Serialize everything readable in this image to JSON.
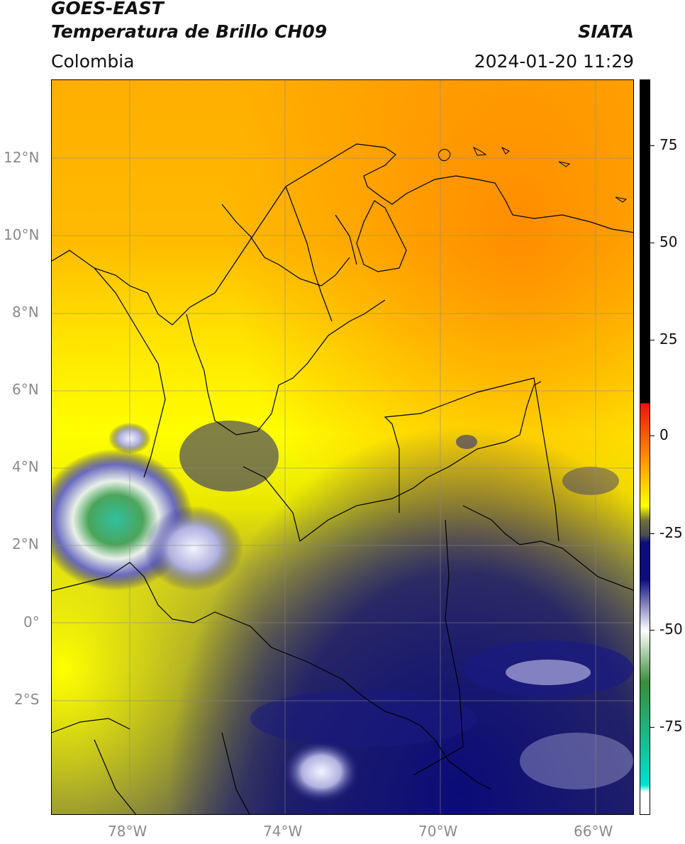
{
  "header": {
    "satellite": "GOES-EAST",
    "product": "Temperatura de Brillo CH09",
    "region": "Colombia",
    "org": "SIATA",
    "timestamp": "2024-01-20 11:29"
  },
  "map": {
    "lat_labels": [
      "12°N",
      "10°N",
      "8°N",
      "6°N",
      "4°N",
      "2°N",
      "0°",
      "2°S"
    ],
    "lon_labels": [
      "78°W",
      "74°W",
      "70°W",
      "66°W"
    ],
    "grid": true
  },
  "colorbar": {
    "labels": [
      "75",
      "50",
      "25",
      "0",
      "-25",
      "-50",
      "-75"
    ],
    "colors": {
      "black": "#000000",
      "red": "#e8140a",
      "orange": "#ff9900",
      "yellow": "#ffff00",
      "olive": "#6f6f3a",
      "gray": "#4a4a55",
      "navy": "#0c0c7a",
      "white": "#ffffff",
      "green": "#3a8c3a",
      "cyan": "#00e0d0"
    }
  }
}
